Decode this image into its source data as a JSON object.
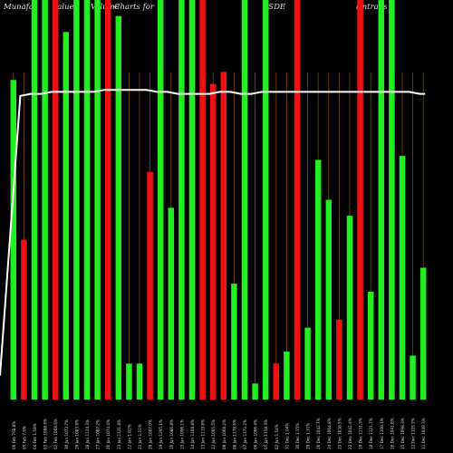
{
  "chart_data": {
    "type": "bar",
    "title_parts": [
      "Munafa",
      "Value",
      "Volume",
      "Charts for",
      "BSDE",
      "(Intrans"
    ],
    "ylim": [
      0,
      100
    ],
    "grid": "vertical",
    "colors": {
      "up": "#22ee22",
      "down": "#ee1111",
      "grid": "#7a4800",
      "line": "#ffffff",
      "background": "#000000",
      "text": "#d8d8d8"
    },
    "categories": [
      "Fri 06 Feb",
      "Thu 05 Feb",
      "Wed 04 Feb",
      "Tue 03 Feb",
      "Mon 02 Feb",
      "Fri 30 Jan",
      "Thu 29 Jan",
      "Wed 28 Jan",
      "Tue 27 Jan",
      "Mon 26 Jan",
      "Fri 23 Jan",
      "Thu 22 Jan",
      "Wed 21 Jan",
      "Tue 20 Jan",
      "Mon 19 Jan",
      "Fri 16 Jan",
      "Thu 15 Jan",
      "Wed 14 Jan",
      "Tue 13 Jan",
      "Mon 12 Jan",
      "Fri 09 Jan",
      "Thu 08 Jan",
      "Wed 07 Jan",
      "Tue 06 Jan",
      "Mon 05 Jan",
      "Fri 02 Jan",
      "Wed 31 Dec",
      "Tue 30 Dec",
      "Mon 29 Dec",
      "Fri 26 Dec",
      "Wed 24 Dec",
      "Tue 23 Dec",
      "Mon 22 Dec",
      "Fri 19 Dec",
      "Thu 18 Dec",
      "Wed 17 Dec",
      "Tue 16 Dec",
      "Mon 15 Dec",
      "Fri 12 Dec",
      "Thu 11 Dec"
    ],
    "tick_labels": [
      "06 Feb 768.8%",
      "05 Feb 7.6%",
      "04 Feb 1.58%",
      "03 Feb 1088.6%",
      "02 Feb 1068.6%",
      "30 Jan 1073.7%",
      "29 Jan 1083.8%",
      "28 Jan 1124.3%",
      "27 Jan 1087.2%",
      "26 Jan 1074.4%",
      "23 Jan 1121.8%",
      "22 Jan 1.02%",
      "21 Jan 1.21%",
      "20 Jan 1007.0%",
      "19 Jan 1295.1%",
      "16 Jan 1086.8%",
      "15 Jan 1096.1%",
      "14 Jan 1108.8%",
      "13 Jan 1119.8%",
      "12 Jan 1065.5%",
      "09 Jan 1068.2%",
      "08 Jan 1178.6%",
      "07 Jan 1171.2%",
      "06 Jan 1066.4%",
      "05 Jan 1158.3%",
      "02 Jan 1.54%",
      "31 Dec 1.04%",
      "30 Dec 1.75%",
      "29 Dec 1.31%",
      "26 Dec 1042.7%",
      "24 Dec 1064.8%",
      "23 Dec 1038.5%",
      "22 Dec 1042.4%",
      "19 Dec 1131.3%",
      "18 Dec 1121.7%",
      "17 Dec 1108.1%",
      "16 Dec 1041.8%",
      "15 Dec 1098.3%",
      "12 Dec 1105.7%",
      "11 Dec 1049.3%"
    ],
    "series": [
      {
        "kind": "bar",
        "values": [
          80,
          40,
          100,
          100,
          100,
          92,
          100,
          100,
          100,
          100,
          96,
          9,
          9,
          57,
          100,
          48,
          100,
          100,
          100,
          79,
          82,
          29,
          100,
          4,
          100,
          9,
          12,
          100,
          18,
          60,
          50,
          20,
          46,
          100,
          27,
          100,
          100,
          61,
          11,
          33
        ],
        "direction": [
          "up",
          "down",
          "up",
          "up",
          "down",
          "up",
          "up",
          "up",
          "up",
          "down",
          "up",
          "up",
          "up",
          "down",
          "up",
          "up",
          "up",
          "up",
          "down",
          "down",
          "down",
          "up",
          "up",
          "up",
          "up",
          "down",
          "up",
          "down",
          "up",
          "up",
          "up",
          "down",
          "up",
          "down",
          "up",
          "up",
          "up",
          "up",
          "up",
          "up"
        ]
      },
      {
        "kind": "line",
        "values": [
          6,
          76,
          76.5,
          76.5,
          77,
          77,
          77,
          77,
          77,
          77.5,
          77.5,
          77.5,
          77.5,
          77.5,
          77,
          77,
          76.5,
          76.5,
          76.5,
          76.5,
          77,
          77,
          76.5,
          76.5,
          77,
          77,
          77,
          77,
          77,
          77,
          77,
          77,
          77,
          77,
          77,
          77,
          77,
          77,
          77,
          76.5
        ]
      }
    ]
  }
}
